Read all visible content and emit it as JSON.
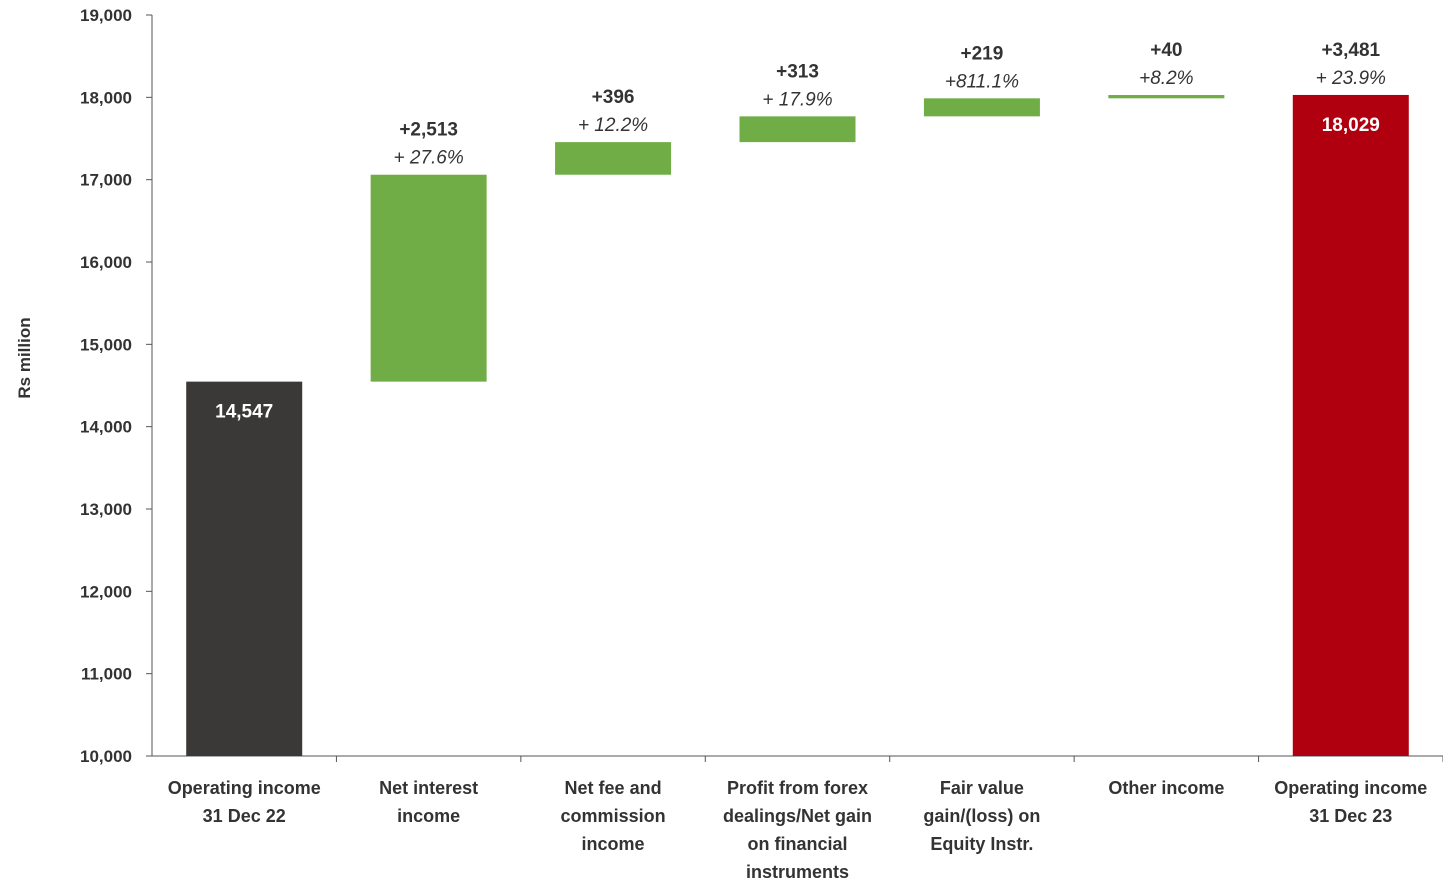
{
  "chart_data": {
    "type": "bar",
    "subtype": "waterfall",
    "title": "",
    "ylabel": "Rs million",
    "xlabel": "",
    "ylim": [
      10000,
      19000
    ],
    "yticks": [
      10000,
      11000,
      12000,
      13000,
      14000,
      15000,
      16000,
      17000,
      18000,
      19000
    ],
    "ytick_labels": [
      "10,000",
      "11,000",
      "12,000",
      "13,000",
      "14,000",
      "15,000",
      "16,000",
      "17,000",
      "18,000",
      "19,000"
    ],
    "grid": false,
    "legend": "none",
    "colors": {
      "start_total": "#3a3937",
      "increase": "#70ad47",
      "end_total": "#b0000f",
      "axis": "#555555"
    },
    "bars": [
      {
        "category": [
          "Operating income",
          "31 Dec 22"
        ],
        "kind": "total",
        "base": 10000,
        "value": 14547,
        "inside_label": "14,547",
        "delta_label": "",
        "pct_label": ""
      },
      {
        "category": [
          "Net interest",
          "income"
        ],
        "kind": "increase",
        "base": 14547,
        "value": 17060,
        "inside_label": "",
        "delta_label": "+2,513",
        "pct_label": "+ 27.6%"
      },
      {
        "category": [
          "Net fee and",
          "commission",
          "income"
        ],
        "kind": "increase",
        "base": 17060,
        "value": 17456,
        "inside_label": "",
        "delta_label": "+396",
        "pct_label": "+ 12.2%"
      },
      {
        "category": [
          "Profit from forex",
          "dealings/Net gain",
          "on financial",
          "instruments"
        ],
        "kind": "increase",
        "base": 17456,
        "value": 17769,
        "inside_label": "",
        "delta_label": "+313",
        "pct_label": "+ 17.9%"
      },
      {
        "category": [
          "Fair value",
          "gain/(loss) on",
          "Equity Instr."
        ],
        "kind": "increase",
        "base": 17769,
        "value": 17988,
        "inside_label": "",
        "delta_label": "+219",
        "pct_label": "+811.1%"
      },
      {
        "category": [
          "Other income"
        ],
        "kind": "increase",
        "base": 17988,
        "value": 18028,
        "inside_label": "",
        "delta_label": "+40",
        "pct_label": "+8.2%"
      },
      {
        "category": [
          "Operating income",
          "31 Dec 23"
        ],
        "kind": "end_total",
        "base": 10000,
        "value": 18029,
        "inside_label": "18,029",
        "delta_label": "+3,481",
        "pct_label": "+ 23.9%"
      }
    ]
  }
}
